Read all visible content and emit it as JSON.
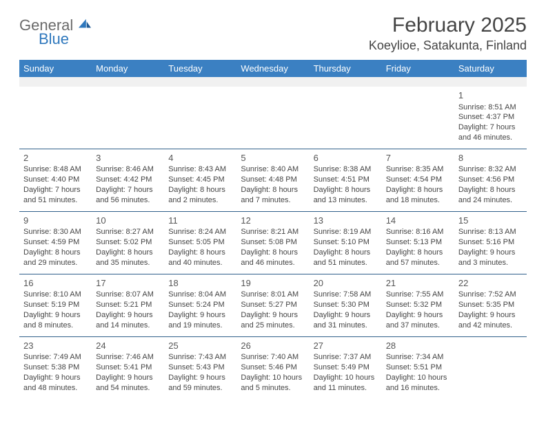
{
  "logo": {
    "text1": "General",
    "text2": "Blue",
    "color_general": "#6a6a6a",
    "color_blue": "#2f78bd"
  },
  "title": "February 2025",
  "location": "Koeylioe, Satakunta, Finland",
  "header_bg": "#3b80c2",
  "border_color": "#2f5f8a",
  "days_of_week": [
    "Sunday",
    "Monday",
    "Tuesday",
    "Wednesday",
    "Thursday",
    "Friday",
    "Saturday"
  ],
  "weeks": [
    [
      null,
      null,
      null,
      null,
      null,
      null,
      {
        "n": "1",
        "sr": "Sunrise: 8:51 AM",
        "ss": "Sunset: 4:37 PM",
        "d1": "Daylight: 7 hours",
        "d2": "and 46 minutes."
      }
    ],
    [
      {
        "n": "2",
        "sr": "Sunrise: 8:48 AM",
        "ss": "Sunset: 4:40 PM",
        "d1": "Daylight: 7 hours",
        "d2": "and 51 minutes."
      },
      {
        "n": "3",
        "sr": "Sunrise: 8:46 AM",
        "ss": "Sunset: 4:42 PM",
        "d1": "Daylight: 7 hours",
        "d2": "and 56 minutes."
      },
      {
        "n": "4",
        "sr": "Sunrise: 8:43 AM",
        "ss": "Sunset: 4:45 PM",
        "d1": "Daylight: 8 hours",
        "d2": "and 2 minutes."
      },
      {
        "n": "5",
        "sr": "Sunrise: 8:40 AM",
        "ss": "Sunset: 4:48 PM",
        "d1": "Daylight: 8 hours",
        "d2": "and 7 minutes."
      },
      {
        "n": "6",
        "sr": "Sunrise: 8:38 AM",
        "ss": "Sunset: 4:51 PM",
        "d1": "Daylight: 8 hours",
        "d2": "and 13 minutes."
      },
      {
        "n": "7",
        "sr": "Sunrise: 8:35 AM",
        "ss": "Sunset: 4:54 PM",
        "d1": "Daylight: 8 hours",
        "d2": "and 18 minutes."
      },
      {
        "n": "8",
        "sr": "Sunrise: 8:32 AM",
        "ss": "Sunset: 4:56 PM",
        "d1": "Daylight: 8 hours",
        "d2": "and 24 minutes."
      }
    ],
    [
      {
        "n": "9",
        "sr": "Sunrise: 8:30 AM",
        "ss": "Sunset: 4:59 PM",
        "d1": "Daylight: 8 hours",
        "d2": "and 29 minutes."
      },
      {
        "n": "10",
        "sr": "Sunrise: 8:27 AM",
        "ss": "Sunset: 5:02 PM",
        "d1": "Daylight: 8 hours",
        "d2": "and 35 minutes."
      },
      {
        "n": "11",
        "sr": "Sunrise: 8:24 AM",
        "ss": "Sunset: 5:05 PM",
        "d1": "Daylight: 8 hours",
        "d2": "and 40 minutes."
      },
      {
        "n": "12",
        "sr": "Sunrise: 8:21 AM",
        "ss": "Sunset: 5:08 PM",
        "d1": "Daylight: 8 hours",
        "d2": "and 46 minutes."
      },
      {
        "n": "13",
        "sr": "Sunrise: 8:19 AM",
        "ss": "Sunset: 5:10 PM",
        "d1": "Daylight: 8 hours",
        "d2": "and 51 minutes."
      },
      {
        "n": "14",
        "sr": "Sunrise: 8:16 AM",
        "ss": "Sunset: 5:13 PM",
        "d1": "Daylight: 8 hours",
        "d2": "and 57 minutes."
      },
      {
        "n": "15",
        "sr": "Sunrise: 8:13 AM",
        "ss": "Sunset: 5:16 PM",
        "d1": "Daylight: 9 hours",
        "d2": "and 3 minutes."
      }
    ],
    [
      {
        "n": "16",
        "sr": "Sunrise: 8:10 AM",
        "ss": "Sunset: 5:19 PM",
        "d1": "Daylight: 9 hours",
        "d2": "and 8 minutes."
      },
      {
        "n": "17",
        "sr": "Sunrise: 8:07 AM",
        "ss": "Sunset: 5:21 PM",
        "d1": "Daylight: 9 hours",
        "d2": "and 14 minutes."
      },
      {
        "n": "18",
        "sr": "Sunrise: 8:04 AM",
        "ss": "Sunset: 5:24 PM",
        "d1": "Daylight: 9 hours",
        "d2": "and 19 minutes."
      },
      {
        "n": "19",
        "sr": "Sunrise: 8:01 AM",
        "ss": "Sunset: 5:27 PM",
        "d1": "Daylight: 9 hours",
        "d2": "and 25 minutes."
      },
      {
        "n": "20",
        "sr": "Sunrise: 7:58 AM",
        "ss": "Sunset: 5:30 PM",
        "d1": "Daylight: 9 hours",
        "d2": "and 31 minutes."
      },
      {
        "n": "21",
        "sr": "Sunrise: 7:55 AM",
        "ss": "Sunset: 5:32 PM",
        "d1": "Daylight: 9 hours",
        "d2": "and 37 minutes."
      },
      {
        "n": "22",
        "sr": "Sunrise: 7:52 AM",
        "ss": "Sunset: 5:35 PM",
        "d1": "Daylight: 9 hours",
        "d2": "and 42 minutes."
      }
    ],
    [
      {
        "n": "23",
        "sr": "Sunrise: 7:49 AM",
        "ss": "Sunset: 5:38 PM",
        "d1": "Daylight: 9 hours",
        "d2": "and 48 minutes."
      },
      {
        "n": "24",
        "sr": "Sunrise: 7:46 AM",
        "ss": "Sunset: 5:41 PM",
        "d1": "Daylight: 9 hours",
        "d2": "and 54 minutes."
      },
      {
        "n": "25",
        "sr": "Sunrise: 7:43 AM",
        "ss": "Sunset: 5:43 PM",
        "d1": "Daylight: 9 hours",
        "d2": "and 59 minutes."
      },
      {
        "n": "26",
        "sr": "Sunrise: 7:40 AM",
        "ss": "Sunset: 5:46 PM",
        "d1": "Daylight: 10 hours",
        "d2": "and 5 minutes."
      },
      {
        "n": "27",
        "sr": "Sunrise: 7:37 AM",
        "ss": "Sunset: 5:49 PM",
        "d1": "Daylight: 10 hours",
        "d2": "and 11 minutes."
      },
      {
        "n": "28",
        "sr": "Sunrise: 7:34 AM",
        "ss": "Sunset: 5:51 PM",
        "d1": "Daylight: 10 hours",
        "d2": "and 16 minutes."
      },
      null
    ]
  ]
}
